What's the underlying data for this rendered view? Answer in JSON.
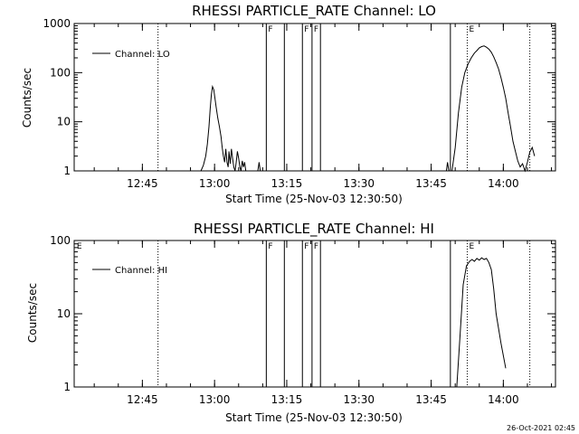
{
  "chart_data": [
    {
      "type": "line",
      "title": "RHESSI PARTICLE_RATE Channel: LO",
      "xlabel": "Start Time (25-Nov-03 12:30:50)",
      "ylabel": "Counts/sec",
      "yscale": "log",
      "ylim": [
        1,
        1000
      ],
      "xlim": [
        "12:30:50",
        "14:10:50"
      ],
      "x_ticks": [
        "12:45",
        "13:00",
        "13:15",
        "13:30",
        "13:45",
        "14:00"
      ],
      "y_ticks": [
        "1",
        "10",
        "100",
        "1000"
      ],
      "legend": {
        "label": "Channel: LO",
        "placement": "top-left"
      },
      "grid": false,
      "series": [
        {
          "name": "Channel: LO",
          "segments": [
            {
              "x": [
                "13:09:00",
                "13:09:15",
                "13:09:30"
              ],
              "y": [
                1.0,
                1.5,
                1.0
              ]
            },
            {
              "x": [
                "12:57:10",
                "12:57:40",
                "12:58:10",
                "12:58:30",
                "12:58:50",
                "12:59:05",
                "12:59:20",
                "12:59:35",
                "12:59:50",
                "13:00:05",
                "13:00:20",
                "13:00:40",
                "13:01:00",
                "13:01:20",
                "13:01:35",
                "13:01:50",
                "13:02:05",
                "13:02:20",
                "13:02:35",
                "13:02:50",
                "13:03:00",
                "13:03:15",
                "13:03:30",
                "13:03:45",
                "13:04:00",
                "13:04:15",
                "13:04:30",
                "13:04:45",
                "13:05:00",
                "13:05:15",
                "13:05:30",
                "13:05:45",
                "13:06:00",
                "13:06:15",
                "13:06:30"
              ],
              "y": [
                1.0,
                1.3,
                2.0,
                3.5,
                8.0,
                18,
                35,
                52,
                45,
                30,
                20,
                12,
                8,
                5,
                3.0,
                2.0,
                1.5,
                2.8,
                1.5,
                1.2,
                2.5,
                1.4,
                2.8,
                1.8,
                1.2,
                1.0,
                1.5,
                2.5,
                1.8,
                1.2,
                1.0,
                1.6,
                1.2,
                1.5,
                1.0
              ]
            },
            {
              "x": [
                "13:48:10",
                "13:48:25",
                "13:48:40"
              ],
              "y": [
                1.0,
                1.5,
                1.0
              ]
            },
            {
              "x": [
                "13:49:20",
                "13:50:00",
                "13:50:40",
                "13:51:20",
                "13:52:00",
                "13:52:40",
                "13:53:20",
                "13:54:00",
                "13:54:30",
                "13:55:00",
                "13:55:30",
                "13:56:00",
                "13:56:30",
                "13:57:00",
                "13:57:30",
                "13:58:00",
                "13:58:30",
                "13:59:00",
                "13:59:30",
                "14:00:00",
                "14:00:30",
                "14:01:00",
                "14:01:30",
                "14:02:00",
                "14:02:30",
                "14:03:00",
                "14:03:30",
                "14:04:00",
                "14:04:30",
                "14:05:00",
                "14:05:30",
                "14:06:00",
                "14:06:30"
              ],
              "y": [
                1.0,
                3.0,
                15,
                50,
                100,
                150,
                200,
                250,
                280,
                320,
                340,
                350,
                330,
                300,
                260,
                210,
                160,
                120,
                80,
                50,
                30,
                15,
                8,
                4,
                2.5,
                1.6,
                1.2,
                1.4,
                1.0,
                1.5,
                2.4,
                3.0,
                2.0
              ]
            }
          ]
        }
      ],
      "annotations": [
        {
          "time": "12:48:15",
          "style": "dotted",
          "label": ""
        },
        {
          "time": "13:10:45",
          "style": "solid",
          "label": "F"
        },
        {
          "time": "13:14:30",
          "style": "solid",
          "label": ""
        },
        {
          "time": "13:18:15",
          "style": "solid",
          "label": "F"
        },
        {
          "time": "13:20:15",
          "style": "solid",
          "label": "F"
        },
        {
          "time": "13:22:00",
          "style": "solid",
          "label": ""
        },
        {
          "time": "13:49:00",
          "style": "solid",
          "label": ""
        },
        {
          "time": "13:52:30",
          "style": "dotted",
          "label": "E"
        },
        {
          "time": "14:05:30",
          "style": "dotted",
          "label": ""
        }
      ]
    },
    {
      "type": "line",
      "title": "RHESSI PARTICLE_RATE Channel: HI",
      "xlabel": "Start Time (25-Nov-03 12:30:50)",
      "ylabel": "Counts/sec",
      "yscale": "log",
      "ylim": [
        1,
        100
      ],
      "xlim": [
        "12:30:50",
        "14:10:50"
      ],
      "x_ticks": [
        "12:45",
        "13:00",
        "13:15",
        "13:30",
        "13:45",
        "14:00"
      ],
      "y_ticks": [
        "1",
        "10",
        "100"
      ],
      "legend": {
        "label": "Channel: HI",
        "placement": "top-left"
      },
      "grid": false,
      "series": [
        {
          "name": "Channel: HI",
          "segments": [
            {
              "x": [
                "13:50:20",
                "13:51:00",
                "13:51:40",
                "13:52:20",
                "13:53:00",
                "13:53:30",
                "13:54:00",
                "13:54:30",
                "13:55:00",
                "13:55:30",
                "13:56:00",
                "13:56:30",
                "13:57:00",
                "13:57:30",
                "13:58:00",
                "13:58:30",
                "13:59:30",
                "14:00:30"
              ],
              "y": [
                1.0,
                5.0,
                25,
                45,
                52,
                55,
                52,
                57,
                54,
                58,
                55,
                57,
                50,
                40,
                22,
                10,
                4,
                1.8
              ]
            }
          ]
        }
      ],
      "annotations": [
        {
          "time": "12:31:00",
          "style": "none",
          "label": "E"
        },
        {
          "time": "12:48:15",
          "style": "dotted",
          "label": ""
        },
        {
          "time": "13:10:45",
          "style": "solid",
          "label": "F"
        },
        {
          "time": "13:14:30",
          "style": "solid",
          "label": ""
        },
        {
          "time": "13:18:15",
          "style": "solid",
          "label": "F"
        },
        {
          "time": "13:20:15",
          "style": "solid",
          "label": "F"
        },
        {
          "time": "13:22:00",
          "style": "solid",
          "label": ""
        },
        {
          "time": "13:49:00",
          "style": "solid",
          "label": ""
        },
        {
          "time": "13:52:30",
          "style": "dotted",
          "label": "E"
        },
        {
          "time": "14:05:30",
          "style": "dotted",
          "label": ""
        }
      ]
    }
  ],
  "footer": {
    "timestamp": "26-Oct-2021 02:45"
  }
}
